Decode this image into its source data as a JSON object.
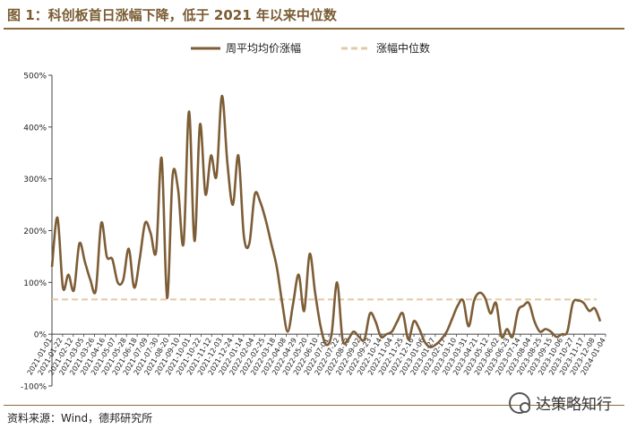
{
  "figure": {
    "title": "图 1：科创板首日涨幅下降，低于 2021 年以来中位数",
    "source": "资料来源：Wind，德邦研究所",
    "watermark": "达策略知行",
    "watermark_icon": "wechat-icon"
  },
  "colors": {
    "series_line": "#7d5d36",
    "median_line": "#e3c9a8",
    "title": "#7a5c33"
  },
  "chart_data": {
    "type": "line",
    "title": "",
    "xlabel": "",
    "ylabel": "",
    "ylim": [
      -100,
      500
    ],
    "ytick_values": [
      -100,
      0,
      100,
      200,
      300,
      400,
      500
    ],
    "ytick_labels": [
      "-100%",
      "0%",
      "100%",
      "200%",
      "300%",
      "400%",
      "500%"
    ],
    "grid": false,
    "legend_position": "top",
    "x_tick_labels": [
      "2021-01-01",
      "2021-01-22",
      "2021-02-12",
      "2021-03-05",
      "2021-03-26",
      "2021-04-16",
      "2021-05-07",
      "2021-05-28",
      "2021-06-18",
      "2021-07-09",
      "2021-07-30",
      "2021-08-20",
      "2021-09-10",
      "2021-10-01",
      "2021-10-22",
      "2021-11-12",
      "2021-12-03",
      "2021-12-24",
      "2022-01-14",
      "2022-02-04",
      "2022-02-25",
      "2022-03-18",
      "2022-04-08",
      "2022-04-29",
      "2022-05-20",
      "2022-06-10",
      "2022-07-01",
      "2022-07-22",
      "2022-08-12",
      "2022-09-02",
      "2022-09-23",
      "2022-10-14",
      "2022-11-04",
      "2022-11-25",
      "2022-12-16",
      "2023-01-06",
      "2023-01-27",
      "2023-02-17",
      "2023-03-10",
      "2023-03-31",
      "2023-04-21",
      "2023-05-12",
      "2023-06-02",
      "2023-06-23",
      "2023-07-14",
      "2023-08-04",
      "2023-08-25",
      "2023-09-15",
      "2023-10-06",
      "2023-10-27",
      "2023-11-17",
      "2023-12-08",
      "2024-01-04"
    ],
    "series": [
      {
        "name": "周平均均价涨幅",
        "style": "solid",
        "values": [
          130,
          225,
          90,
          115,
          85,
          175,
          140,
          105,
          85,
          215,
          150,
          145,
          100,
          105,
          165,
          90,
          145,
          215,
          195,
          160,
          340,
          70,
          305,
          280,
          175,
          430,
          180,
          405,
          270,
          345,
          305,
          460,
          330,
          250,
          345,
          190,
          175,
          270,
          255,
          220,
          175,
          130,
          60,
          5,
          60,
          115,
          45,
          155,
          80,
          15,
          -20,
          0,
          100,
          -10,
          -10,
          5,
          -5,
          -10,
          40,
          25,
          -5,
          0,
          5,
          25,
          40,
          -10,
          25,
          10,
          -15,
          -25,
          -20,
          -10,
          5,
          30,
          55,
          65,
          15,
          65,
          80,
          70,
          40,
          60,
          -5,
          10,
          -5,
          45,
          55,
          60,
          25,
          5,
          10,
          5,
          -5,
          0,
          5,
          60,
          65,
          60,
          45,
          50,
          25
        ],
        "first_date": "2021-01-01",
        "last_date": "2024-01-04"
      },
      {
        "name": "涨幅中位数",
        "style": "dashed",
        "values": [
          67
        ]
      }
    ]
  }
}
